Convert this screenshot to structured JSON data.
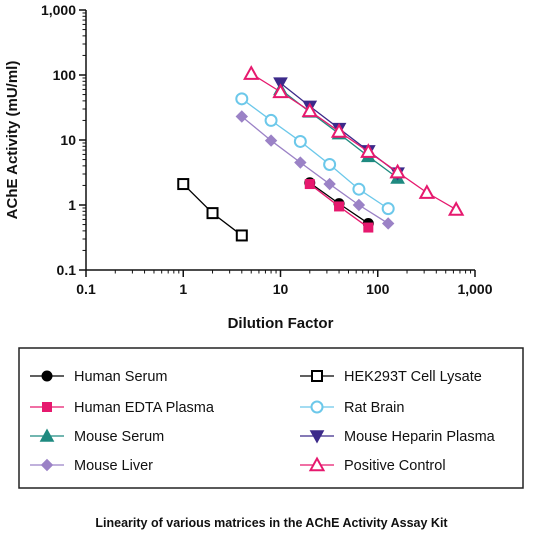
{
  "caption": "Linearity of various matrices in the AChE Activity Assay Kit",
  "chart_data": {
    "type": "line",
    "xscale": "log",
    "yscale": "log",
    "xlabel": "Dilution Factor",
    "ylabel": "AChE Activity (mU/ml)",
    "xlim": [
      0.1,
      1000
    ],
    "ylim": [
      0.1,
      1000
    ],
    "xticks": [
      {
        "value": 0.1,
        "label": "0.1"
      },
      {
        "value": 1,
        "label": "1"
      },
      {
        "value": 10,
        "label": "10"
      },
      {
        "value": 100,
        "label": "100"
      },
      {
        "value": 1000,
        "label": "1,000"
      }
    ],
    "yticks": [
      {
        "value": 0.1,
        "label": "0.1"
      },
      {
        "value": 1,
        "label": "1"
      },
      {
        "value": 10,
        "label": "10"
      },
      {
        "value": 100,
        "label": "100"
      },
      {
        "value": 1000,
        "label": "1,000"
      }
    ],
    "grid": false,
    "legend_position": "bottom",
    "series": [
      {
        "name": "Human Serum",
        "marker": "circle",
        "filled": true,
        "color": "#000000",
        "x": [
          20,
          40,
          80
        ],
        "y": [
          2.2,
          1.05,
          0.52
        ]
      },
      {
        "name": "Human EDTA Plasma",
        "marker": "square",
        "filled": true,
        "color": "#e6196e",
        "x": [
          20,
          40,
          80
        ],
        "y": [
          2.1,
          0.95,
          0.45
        ]
      },
      {
        "name": "Mouse Serum",
        "marker": "triangle-up",
        "filled": true,
        "color": "#1f8a80",
        "x": [
          10,
          20,
          40,
          80,
          160
        ],
        "y": [
          60,
          27,
          12.5,
          5.6,
          2.6
        ]
      },
      {
        "name": "Mouse Liver",
        "marker": "diamond",
        "filled": true,
        "color": "#9b82c6",
        "x": [
          4,
          8,
          16,
          32,
          64,
          128
        ],
        "y": [
          23,
          9.8,
          4.5,
          2.1,
          1.0,
          0.52
        ]
      },
      {
        "name": "HEK293T Cell Lysate",
        "marker": "square",
        "filled": false,
        "color": "#000000",
        "x": [
          1,
          2,
          4
        ],
        "y": [
          2.1,
          0.75,
          0.34
        ]
      },
      {
        "name": "Rat Brain",
        "marker": "circle",
        "filled": false,
        "color": "#6cc8ea",
        "x": [
          4,
          8,
          16,
          32,
          64,
          128
        ],
        "y": [
          43,
          20,
          9.5,
          4.2,
          1.75,
          0.88
        ]
      },
      {
        "name": "Mouse Heparin Plasma",
        "marker": "triangle-down",
        "filled": true,
        "color": "#3c2a8a",
        "x": [
          10,
          20,
          40,
          80,
          160
        ],
        "y": [
          75,
          33,
          15,
          6.8,
          3.1
        ]
      },
      {
        "name": "Positive Control",
        "marker": "triangle-up",
        "filled": false,
        "color": "#e6196e",
        "x": [
          5,
          10,
          20,
          40,
          80,
          160,
          320,
          640
        ],
        "y": [
          105,
          55,
          28,
          13.5,
          6.6,
          3.2,
          1.55,
          0.85
        ]
      }
    ]
  }
}
